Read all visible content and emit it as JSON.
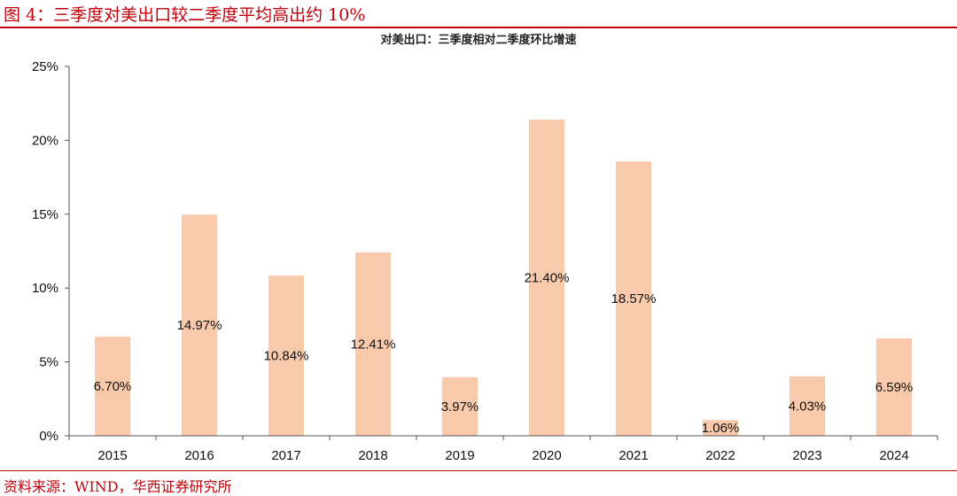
{
  "figure": {
    "title": "图 4：三季度对美出口较二季度平均高出约 10%",
    "source": "资料来源：WIND，华西证券研究所"
  },
  "chart_data": {
    "type": "bar",
    "title": "对美出口：三季度相对二季度环比增速",
    "categories": [
      "2015",
      "2016",
      "2017",
      "2018",
      "2019",
      "2020",
      "2021",
      "2022",
      "2023",
      "2024"
    ],
    "values": [
      6.7,
      14.97,
      10.84,
      12.41,
      3.97,
      21.4,
      18.57,
      1.06,
      4.03,
      6.59
    ],
    "data_labels": [
      "6.70%",
      "14.97%",
      "10.84%",
      "12.41%",
      "3.97%",
      "21.40%",
      "18.57%",
      "1.06%",
      "4.03%",
      "6.59%"
    ],
    "ylim": [
      0,
      25
    ],
    "yticks": [
      0,
      5,
      10,
      15,
      20,
      25
    ],
    "ytick_labels": [
      "0%",
      "5%",
      "10%",
      "15%",
      "20%",
      "25%"
    ],
    "bar_color": "#f8c9aa",
    "xlabel": "",
    "ylabel": "",
    "grid": false,
    "legend": "none"
  }
}
